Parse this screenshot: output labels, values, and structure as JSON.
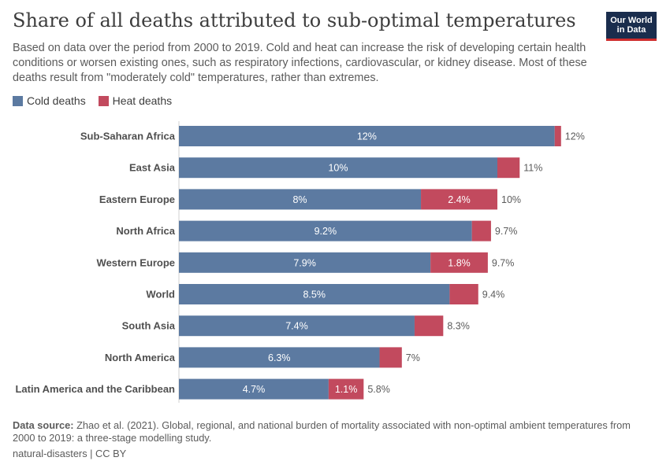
{
  "header": {
    "title": "Share of all deaths attributed to sub-optimal temperatures",
    "subtitle": "Based on data over the period from 2000 to 2019. Cold and heat can increase the risk of developing certain health conditions or worsen existing ones, such as respiratory infections, cardiovascular, or kidney disease. Most of these deaths result from \"moderately cold\" temperatures, rather than extremes.",
    "logo_line1": "Our World",
    "logo_line2": "in Data"
  },
  "legend": {
    "cold_label": "Cold deaths",
    "heat_label": "Heat deaths"
  },
  "colors": {
    "cold": "#5c7aa1",
    "heat": "#c24a5e"
  },
  "chart_data": {
    "type": "bar",
    "orientation": "horizontal",
    "stacked": true,
    "categories": [
      "Sub-Saharan Africa",
      "East Asia",
      "Eastern Europe",
      "North Africa",
      "Western Europe",
      "World",
      "South Asia",
      "North America",
      "Latin America and the Caribbean"
    ],
    "series": [
      {
        "name": "Cold deaths",
        "values": [
          11.8,
          10.0,
          7.6,
          9.2,
          7.9,
          8.5,
          7.4,
          6.3,
          4.7
        ],
        "labels": [
          "12%",
          "10%",
          "8%",
          "9.2%",
          "7.9%",
          "8.5%",
          "7.4%",
          "6.3%",
          "4.7%"
        ]
      },
      {
        "name": "Heat deaths",
        "values": [
          0.2,
          0.7,
          2.4,
          0.6,
          1.8,
          0.9,
          0.9,
          0.7,
          1.1
        ],
        "labels": [
          "",
          "",
          "2.4%",
          "",
          "1.8%",
          "",
          "",
          "",
          "1.1%"
        ]
      }
    ],
    "totals": [
      "12%",
      "11%",
      "10%",
      "9.7%",
      "9.7%",
      "9.4%",
      "8.3%",
      "7%",
      "5.8%"
    ]
  },
  "footer": {
    "source_label": "Data source:",
    "source_text": "Zhao et al. (2021). Global, regional, and national burden of mortality associated with non-optimal ambient temperatures from 2000 to 2019: a three-stage modelling study.",
    "license": "natural-disasters | CC BY"
  }
}
